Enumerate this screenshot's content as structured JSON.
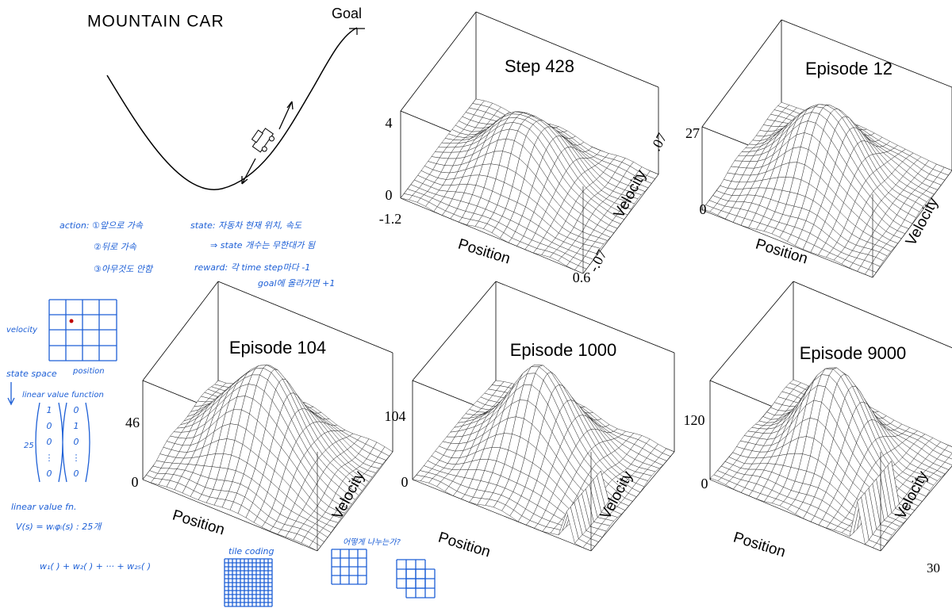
{
  "header": {
    "title": "MOUNTAIN CAR",
    "goal": "Goal"
  },
  "panels": [
    {
      "title": "Step 428",
      "z_top": "4",
      "z_bottom": "0",
      "x_axis": "Position",
      "y_axis": "Velocity",
      "x_min": "-1.2",
      "x_max": "0.6",
      "y_min": "-.07",
      "y_max": ".07"
    },
    {
      "title": "Episode 12",
      "z_top": "27",
      "z_bottom": "0",
      "x_axis": "Position",
      "y_axis": "Velocity"
    },
    {
      "title": "Episode 104",
      "z_top": "46",
      "z_bottom": "0",
      "x_axis": "Position",
      "y_axis": "Velocity"
    },
    {
      "title": "Episode 1000",
      "z_top": "104",
      "z_bottom": "0",
      "x_axis": "Position",
      "y_axis": "Velocity"
    },
    {
      "title": "Episode 9000",
      "z_top": "120",
      "z_bottom": "0",
      "x_axis": "Position",
      "y_axis": "Velocity"
    }
  ],
  "notes": {
    "actions": [
      "action: ①앞으로 가속",
      "②뒤로 가속",
      "③아무것도 안함"
    ],
    "state": [
      "state: 자동차 현재 위치, 속도",
      "⇒ state 개수는 무한대가 됨",
      "reward: 각 time step마다 -1",
      "goal에 올라가면 +1"
    ],
    "grid_y": "velocity",
    "grid_x": "position",
    "state_space": "state space",
    "linear_value_function": "linear value function",
    "vector_size": "25",
    "vector_a": [
      "1",
      "0",
      "0",
      "⋮",
      "0"
    ],
    "vector_b": [
      "0",
      "1",
      "0",
      "⋮",
      "0"
    ],
    "linear_value_fn": "linear value fn.",
    "formula": "V(s) = wᵢφᵢ(s) : 25개",
    "sum": "w₁( ) + w₂( ) + ··· + w₂₅( )",
    "tile_coding": "tile coding",
    "question": "어떻게 나누는가?"
  },
  "page_number": "30"
}
